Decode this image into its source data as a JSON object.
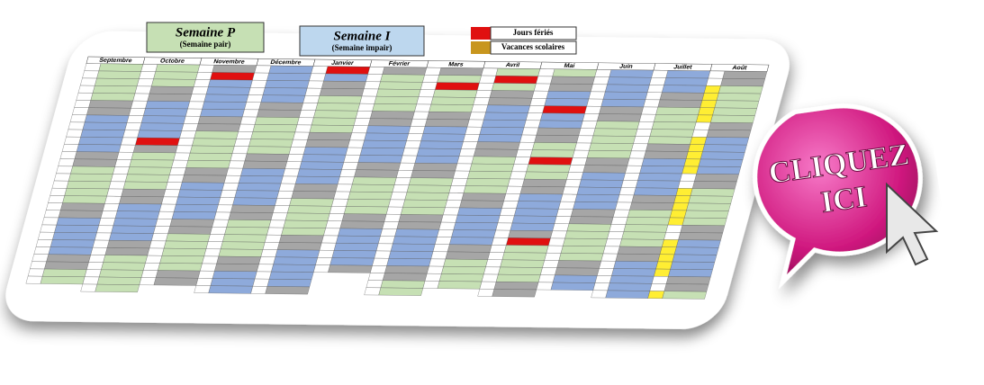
{
  "header": {
    "week_even": {
      "title": "Semaine P",
      "subtitle": "(Semaine pair)"
    },
    "week_odd": {
      "title": "Semaine I",
      "subtitle": "(Semaine impair)"
    }
  },
  "legend": [
    {
      "label": "Jours fériés",
      "color": "#e01010"
    },
    {
      "label": "Vacances scolaires",
      "color": "#c8961e"
    }
  ],
  "months": [
    "Septembre",
    "Octobre",
    "Novembre",
    "Décembre",
    "Janvier",
    "Février",
    "Mars",
    "Avril",
    "Mai",
    "Juin",
    "Juillet",
    "Août"
  ],
  "button": {
    "lines": [
      "CLIQUEZ",
      "ICI"
    ]
  }
}
